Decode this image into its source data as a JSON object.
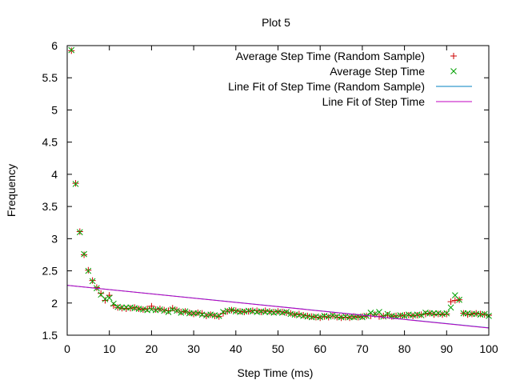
{
  "chart_data": {
    "type": "scatter",
    "title": "Plot 5",
    "xlabel": "Step Time (ms)",
    "ylabel": "Frequency",
    "xlim": [
      0,
      100
    ],
    "ylim": [
      1.5,
      6
    ],
    "xticks": [
      0,
      10,
      20,
      30,
      40,
      50,
      60,
      70,
      80,
      90,
      100
    ],
    "yticks": [
      1.5,
      2,
      2.5,
      3,
      3.5,
      4,
      4.5,
      5,
      5.5,
      6
    ],
    "ytick_labels": [
      "1.5",
      "2",
      "2.5",
      "3",
      "3.5",
      "4",
      "4.5",
      "5",
      "5.5",
      "6"
    ],
    "grid": false,
    "legend_position": "top-right",
    "series": [
      {
        "name": "Average Step Time (Random Sample)",
        "kind": "points",
        "marker": "plus",
        "color": "#cc0000",
        "x": [
          1,
          2,
          3,
          4,
          5,
          6,
          7,
          8,
          9,
          10,
          11,
          12,
          13,
          14,
          15,
          16,
          17,
          18,
          19,
          20,
          21,
          22,
          23,
          24,
          25,
          26,
          27,
          28,
          29,
          30,
          31,
          32,
          33,
          34,
          35,
          36,
          37,
          38,
          39,
          40,
          41,
          42,
          43,
          44,
          45,
          46,
          47,
          48,
          49,
          50,
          51,
          52,
          53,
          54,
          55,
          56,
          57,
          58,
          59,
          60,
          61,
          62,
          63,
          64,
          65,
          66,
          67,
          68,
          69,
          70,
          71,
          72,
          73,
          74,
          75,
          76,
          77,
          78,
          79,
          80,
          81,
          82,
          83,
          84,
          85,
          86,
          87,
          88,
          89,
          90,
          91,
          92,
          93,
          94,
          95,
          96,
          97,
          98,
          99,
          100
        ],
        "y": [
          5.92,
          3.86,
          3.11,
          2.75,
          2.51,
          2.35,
          2.24,
          2.15,
          2.04,
          2.12,
          1.96,
          1.93,
          1.92,
          1.91,
          1.92,
          1.93,
          1.91,
          1.9,
          1.91,
          1.95,
          1.9,
          1.91,
          1.89,
          1.88,
          1.92,
          1.89,
          1.86,
          1.87,
          1.85,
          1.83,
          1.85,
          1.84,
          1.8,
          1.82,
          1.8,
          1.79,
          1.84,
          1.87,
          1.89,
          1.88,
          1.87,
          1.86,
          1.87,
          1.88,
          1.88,
          1.86,
          1.88,
          1.87,
          1.86,
          1.87,
          1.86,
          1.85,
          1.84,
          1.82,
          1.83,
          1.81,
          1.8,
          1.79,
          1.78,
          1.77,
          1.79,
          1.78,
          1.8,
          1.78,
          1.77,
          1.78,
          1.77,
          1.79,
          1.78,
          1.79,
          1.8,
          1.8,
          1.82,
          1.79,
          1.8,
          1.81,
          1.79,
          1.8,
          1.8,
          1.81,
          1.81,
          1.8,
          1.81,
          1.82,
          1.83,
          1.84,
          1.82,
          1.83,
          1.82,
          1.83,
          2.02,
          2.04,
          2.05,
          1.84,
          1.82,
          1.83,
          1.84,
          1.83,
          1.82,
          1.81
        ]
      },
      {
        "name": "Average Step Time",
        "kind": "points",
        "marker": "cross",
        "color": "#00a000",
        "x": [
          1,
          2,
          3,
          4,
          5,
          6,
          7,
          8,
          9,
          10,
          11,
          12,
          13,
          14,
          15,
          16,
          17,
          18,
          19,
          20,
          21,
          22,
          23,
          24,
          25,
          26,
          27,
          28,
          29,
          30,
          31,
          32,
          33,
          34,
          35,
          36,
          37,
          38,
          39,
          40,
          41,
          42,
          43,
          44,
          45,
          46,
          47,
          48,
          49,
          50,
          51,
          52,
          53,
          54,
          55,
          56,
          57,
          58,
          59,
          60,
          61,
          62,
          63,
          64,
          65,
          66,
          67,
          68,
          69,
          70,
          71,
          72,
          73,
          74,
          75,
          76,
          77,
          78,
          79,
          80,
          81,
          82,
          83,
          84,
          85,
          86,
          87,
          88,
          89,
          90,
          91,
          92,
          93,
          94,
          95,
          96,
          97,
          98,
          99,
          100
        ],
        "y": [
          5.93,
          3.85,
          3.1,
          2.76,
          2.5,
          2.34,
          2.23,
          2.13,
          2.06,
          2.08,
          1.99,
          1.94,
          1.93,
          1.93,
          1.93,
          1.92,
          1.91,
          1.9,
          1.89,
          1.9,
          1.89,
          1.9,
          1.88,
          1.86,
          1.9,
          1.88,
          1.85,
          1.87,
          1.84,
          1.84,
          1.84,
          1.82,
          1.81,
          1.82,
          1.81,
          1.8,
          1.86,
          1.88,
          1.89,
          1.87,
          1.86,
          1.87,
          1.88,
          1.87,
          1.86,
          1.87,
          1.86,
          1.86,
          1.85,
          1.86,
          1.85,
          1.86,
          1.83,
          1.82,
          1.81,
          1.8,
          1.79,
          1.78,
          1.79,
          1.78,
          1.8,
          1.79,
          1.81,
          1.79,
          1.78,
          1.79,
          1.78,
          1.78,
          1.79,
          1.78,
          1.8,
          1.85,
          1.83,
          1.86,
          1.79,
          1.83,
          1.8,
          1.79,
          1.81,
          1.8,
          1.82,
          1.81,
          1.82,
          1.81,
          1.85,
          1.84,
          1.84,
          1.84,
          1.83,
          1.84,
          1.93,
          2.12,
          2.05,
          1.84,
          1.84,
          1.83,
          1.83,
          1.82,
          1.83,
          1.8
        ]
      },
      {
        "name": "Line Fit of Step Time (Random Sample)",
        "kind": "line",
        "color": "#0080c0",
        "x": [
          0,
          100
        ],
        "y": [
          2.275,
          1.615
        ]
      },
      {
        "name": "Line Fit of Step Time",
        "kind": "line",
        "color": "#c000c0",
        "x": [
          0,
          100
        ],
        "y": [
          2.275,
          1.612
        ]
      }
    ]
  }
}
